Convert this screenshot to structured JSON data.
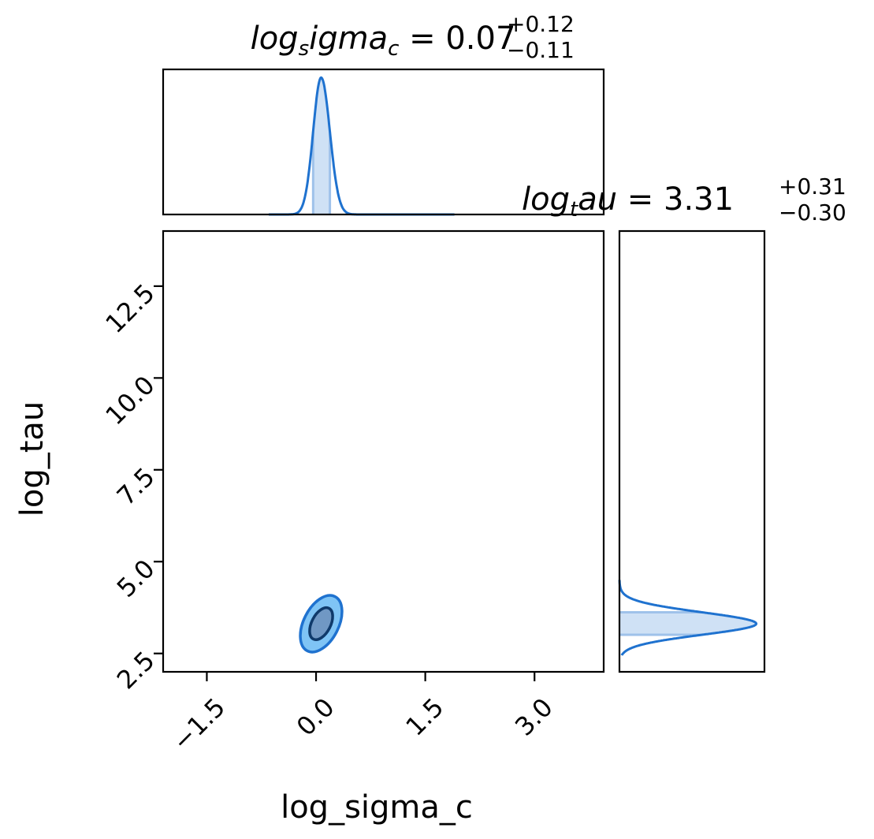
{
  "chart_data": [
    {
      "type": "area",
      "panel": "marginal-x",
      "title": {
        "name_main": "log",
        "name_sub": "s",
        "name_rest": "igma",
        "name_sub2": "c",
        "equals": " = ",
        "value": "0.07",
        "plus": "+0.12",
        "minus": "−0.11"
      },
      "xlim": [
        -2.1,
        3.95
      ],
      "peak_x": 0.07,
      "sigma_left": 0.11,
      "sigma_right": 0.12,
      "support": [
        -0.65,
        1.9
      ],
      "shade_range": [
        -0.04,
        0.19
      ],
      "ylim": [
        0,
        1.06
      ]
    },
    {
      "type": "area",
      "panel": "marginal-y",
      "title": {
        "name_main": "log",
        "name_sub": "t",
        "name_rest": "au",
        "equals": " = ",
        "value": "3.31",
        "plus": "+0.31",
        "minus": "−0.30"
      },
      "ylim": [
        2.0,
        14.0
      ],
      "peak_y": 3.31,
      "sigma_low": 0.3,
      "sigma_high": 0.31,
      "support": [
        2.45,
        4.5
      ],
      "shade_range": [
        3.01,
        3.62
      ],
      "xlim": [
        0,
        1.06
      ]
    },
    {
      "type": "scatter",
      "panel": "joint-contour",
      "xlabel": "log_sigma_c",
      "ylabel": "log_tau",
      "xlim": [
        -2.1,
        3.95
      ],
      "ylim": [
        2.0,
        14.0
      ],
      "xticks": [
        -1.5,
        0.0,
        1.5,
        3.0
      ],
      "xtick_labels": [
        "−1.5",
        "0.0",
        "1.5",
        "3.0"
      ],
      "yticks": [
        2.5,
        5.0,
        7.5,
        10.0,
        12.5
      ],
      "ytick_labels": [
        "2.5",
        "5.0",
        "7.5",
        "10.0",
        "12.5"
      ],
      "center": [
        0.07,
        3.31
      ],
      "contours": [
        {
          "level": "outer",
          "color": "#7fc4f5",
          "rx_units": 0.24,
          "ry_units": 0.83
        },
        {
          "level": "inner",
          "color": "#7098c4",
          "rx_units": 0.13,
          "ry_units": 0.47
        }
      ],
      "tilt_deg": 27,
      "grid": false
    }
  ],
  "colors": {
    "line": "#1f72cf",
    "fill": "#cfe1f5",
    "outer_contour": "#7fc4f5",
    "inner_contour": "#7098c4",
    "inner_edge": "#0f3a6b"
  }
}
